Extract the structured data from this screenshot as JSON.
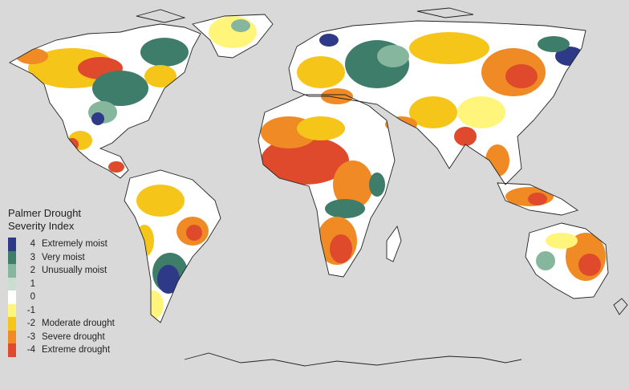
{
  "legend": {
    "title_line1": "Palmer Drought",
    "title_line2": "Severity Index",
    "items": [
      {
        "value": "4",
        "label": "Extremely moist",
        "color": "#2e3a87"
      },
      {
        "value": "3",
        "label": "Very moist",
        "color": "#3e7d6a"
      },
      {
        "value": "2",
        "label": "Unusually moist",
        "color": "#86b79e"
      },
      {
        "value": "1",
        "label": "",
        "color": "#c9ddd0"
      },
      {
        "value": "0",
        "label": "",
        "color": "#ffffff"
      },
      {
        "value": "-1",
        "label": "",
        "color": "#fff57a"
      },
      {
        "value": "-2",
        "label": "Moderate drought",
        "color": "#f6c51a"
      },
      {
        "value": "-3",
        "label": "Severe drought",
        "color": "#ef8a24"
      },
      {
        "value": "-4",
        "label": "Extreme drought",
        "color": "#de4a2b"
      }
    ]
  },
  "colors": {
    "ocean": "#d9d9d9",
    "coastline": "#222222"
  }
}
